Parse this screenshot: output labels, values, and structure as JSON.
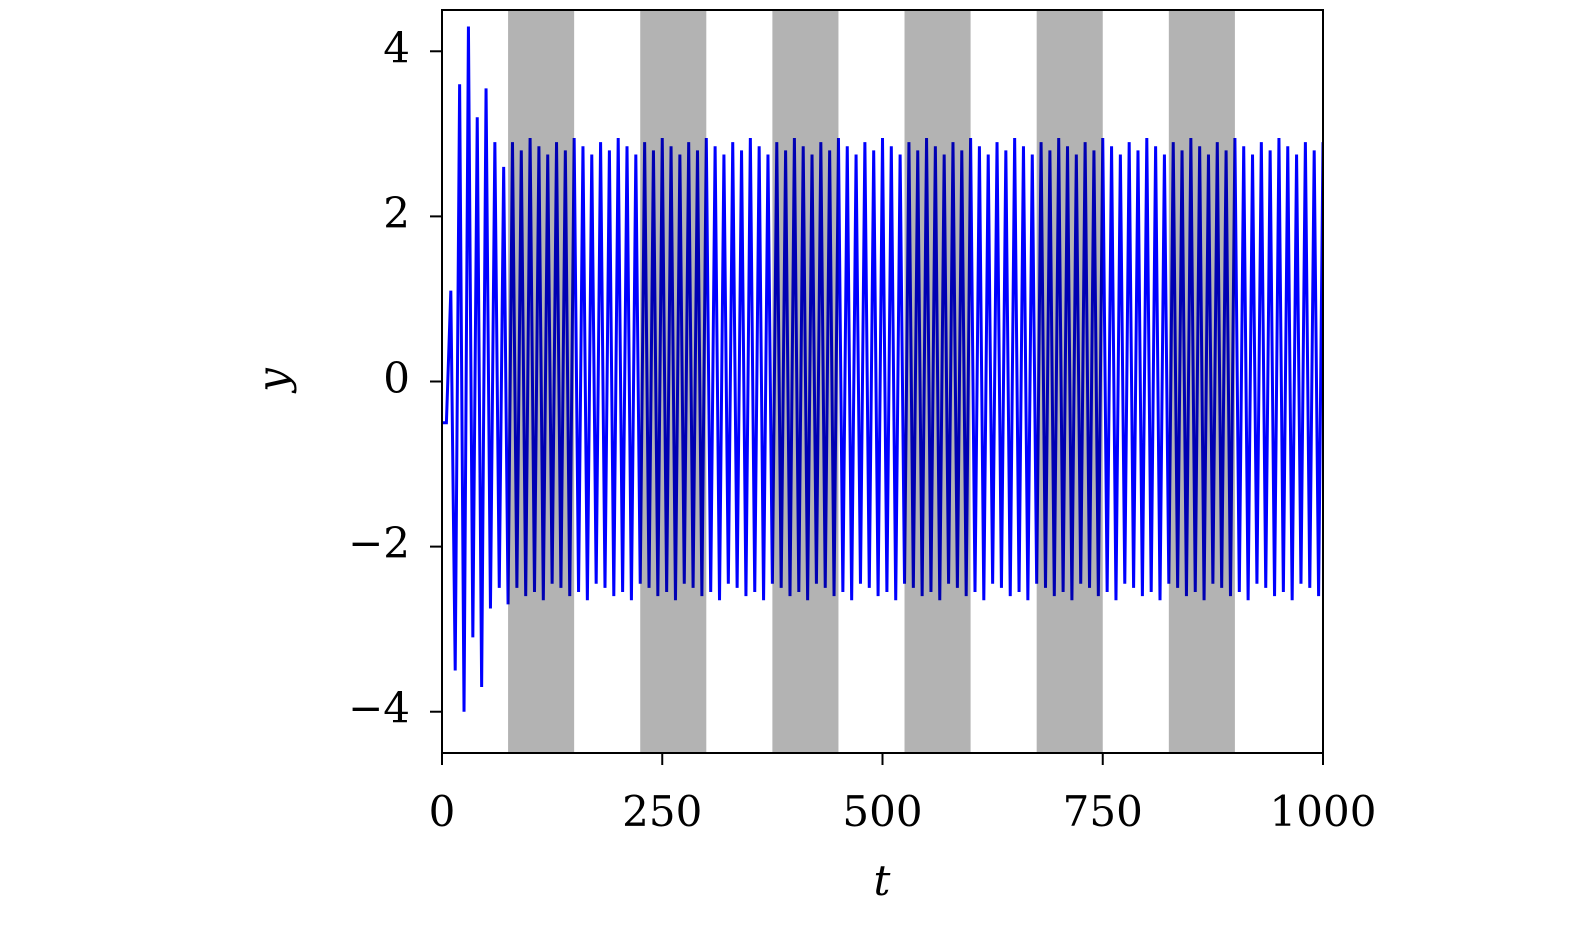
{
  "chart_data": {
    "type": "line",
    "x_label": "t",
    "y_label": "y",
    "xlim": [
      0,
      1000
    ],
    "ylim": [
      -4.5,
      4.5
    ],
    "xticks": [
      0,
      250,
      500,
      750,
      1000
    ],
    "yticks": [
      {
        "value": -4,
        "label": "−4"
      },
      {
        "value": -2,
        "label": "−2"
      },
      0,
      2,
      4
    ],
    "color": "#0000ff",
    "shade_color": "#b3b3b3",
    "shaded_regions": [
      [
        75,
        150
      ],
      [
        225,
        300
      ],
      [
        375,
        450
      ],
      [
        525,
        600
      ],
      [
        675,
        750
      ],
      [
        825,
        900
      ]
    ],
    "x": [
      0,
      5,
      10,
      15,
      20,
      25,
      30,
      35,
      40,
      45,
      50,
      55,
      60,
      65,
      70,
      75,
      80,
      85,
      90,
      95,
      100,
      105,
      110,
      115,
      120,
      125,
      130,
      135,
      140,
      145,
      150,
      155,
      160,
      165,
      170,
      175,
      180,
      185,
      190,
      195,
      200,
      205,
      210,
      215,
      220,
      225,
      230,
      235,
      240,
      245,
      250,
      255,
      260,
      265,
      270,
      275,
      280,
      285,
      290,
      295,
      300,
      305,
      310,
      315,
      320,
      325,
      330,
      335,
      340,
      345,
      350,
      355,
      360,
      365,
      370,
      375,
      380,
      385,
      390,
      395,
      400,
      405,
      410,
      415,
      420,
      425,
      430,
      435,
      440,
      445,
      450,
      455,
      460,
      465,
      470,
      475,
      480,
      485,
      490,
      495,
      500,
      505,
      510,
      515,
      520,
      525,
      530,
      535,
      540,
      545,
      550,
      555,
      560,
      565,
      570,
      575,
      580,
      585,
      590,
      595,
      600,
      605,
      610,
      615,
      620,
      625,
      630,
      635,
      640,
      645,
      650,
      655,
      660,
      665,
      670,
      675,
      680,
      685,
      690,
      695,
      700,
      705,
      710,
      715,
      720,
      725,
      730,
      735,
      740,
      745,
      750,
      755,
      760,
      765,
      770,
      775,
      780,
      785,
      790,
      795,
      800,
      805,
      810,
      815,
      820,
      825,
      830,
      835,
      840,
      845,
      850,
      855,
      860,
      865,
      870,
      875,
      880,
      885,
      890,
      895,
      900,
      905,
      910,
      915,
      920,
      925,
      930,
      935,
      940,
      945,
      950,
      955,
      960,
      965,
      970,
      975,
      980,
      985,
      990,
      995,
      1000
    ],
    "values": [
      -0.5,
      -0.5,
      1.1,
      -3.5,
      3.6,
      -4.0,
      4.3,
      -3.1,
      3.2,
      -3.7,
      3.55,
      -2.75,
      2.9,
      -2.5,
      2.6,
      -2.7,
      2.9,
      -2.5,
      2.8,
      -2.6,
      2.95,
      -2.55,
      2.85,
      -2.65,
      2.75,
      -2.45,
      2.9,
      -2.5,
      2.8,
      -2.6,
      2.95,
      -2.55,
      2.85,
      -2.65,
      2.75,
      -2.45,
      2.9,
      -2.5,
      2.8,
      -2.6,
      2.95,
      -2.55,
      2.85,
      -2.65,
      2.75,
      -2.45,
      2.9,
      -2.5,
      2.8,
      -2.6,
      2.95,
      -2.55,
      2.85,
      -2.65,
      2.75,
      -2.45,
      2.9,
      -2.5,
      2.8,
      -2.6,
      2.95,
      -2.55,
      2.85,
      -2.65,
      2.75,
      -2.45,
      2.9,
      -2.5,
      2.8,
      -2.6,
      2.95,
      -2.55,
      2.85,
      -2.65,
      2.75,
      -2.45,
      2.9,
      -2.5,
      2.8,
      -2.6,
      2.95,
      -2.55,
      2.85,
      -2.65,
      2.75,
      -2.45,
      2.9,
      -2.5,
      2.8,
      -2.6,
      2.95,
      -2.55,
      2.85,
      -2.65,
      2.75,
      -2.45,
      2.9,
      -2.5,
      2.8,
      -2.6,
      2.95,
      -2.55,
      2.85,
      -2.65,
      2.75,
      -2.45,
      2.9,
      -2.5,
      2.8,
      -2.6,
      2.95,
      -2.55,
      2.85,
      -2.65,
      2.75,
      -2.45,
      2.9,
      -2.5,
      2.8,
      -2.6,
      2.95,
      -2.55,
      2.85,
      -2.65,
      2.75,
      -2.45,
      2.9,
      -2.5,
      2.8,
      -2.6,
      2.95,
      -2.55,
      2.85,
      -2.65,
      2.75,
      -2.45,
      2.9,
      -2.5,
      2.8,
      -2.6,
      2.95,
      -2.55,
      2.85,
      -2.65,
      2.75,
      -2.45,
      2.9,
      -2.5,
      2.8,
      -2.6,
      2.95,
      -2.55,
      2.85,
      -2.65,
      2.75,
      -2.45,
      2.9,
      -2.5,
      2.8,
      -2.6,
      2.95,
      -2.55,
      2.85,
      -2.65,
      2.75,
      -2.45,
      2.9,
      -2.5,
      2.8,
      -2.6,
      2.95,
      -2.55,
      2.85,
      -2.65,
      2.75,
      -2.45,
      2.9,
      -2.5,
      2.8,
      -2.6,
      2.95,
      -2.55,
      2.85,
      -2.65,
      2.75,
      -2.45,
      2.9,
      -2.5,
      2.8,
      -2.6,
      2.95,
      -2.55,
      2.85,
      -2.65,
      2.75,
      -2.45,
      2.9,
      -2.5,
      2.8,
      -2.6,
      2.9
    ]
  }
}
